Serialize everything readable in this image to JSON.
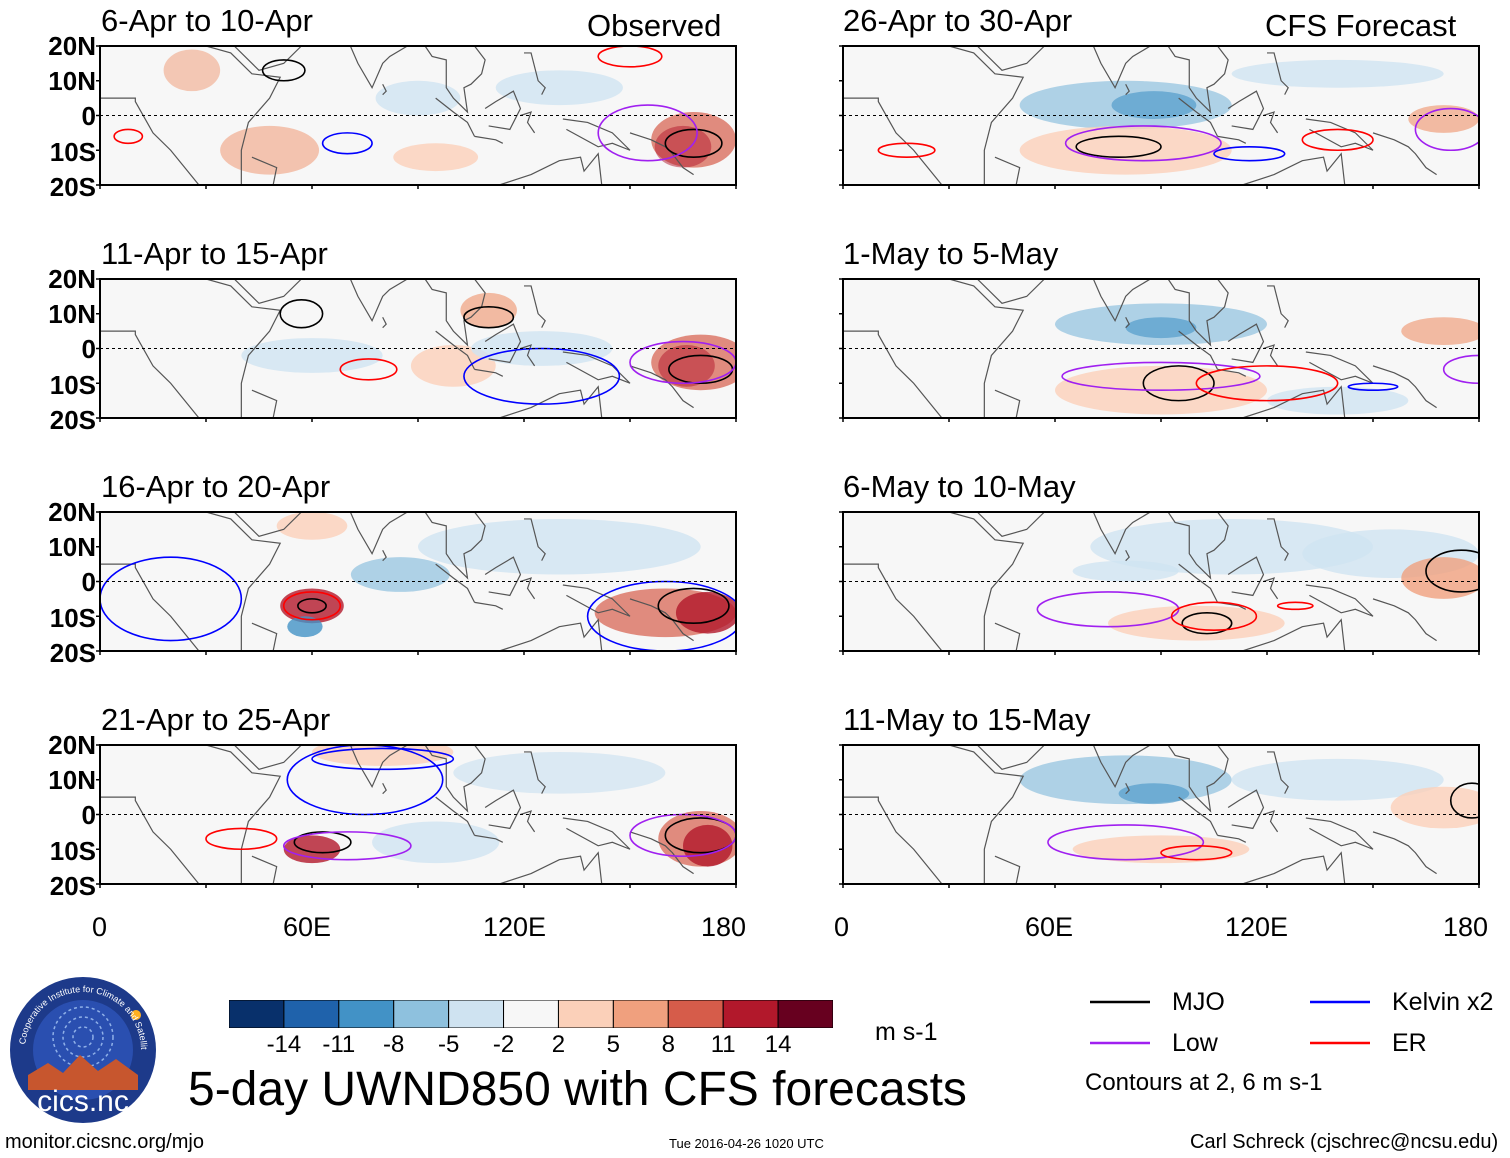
{
  "chart_data": {
    "type": "heatmap",
    "title": "5-day UWND850 with CFS forecasts",
    "variable": "850-hPa zonal wind anomaly",
    "units": "m s-1",
    "x_axis": {
      "range": [
        0,
        180
      ],
      "tick_values": [
        0,
        60,
        120,
        180
      ],
      "tick_labels": [
        "0",
        "60E",
        "120E",
        "180"
      ]
    },
    "y_axis": {
      "range": [
        -20,
        20
      ],
      "tick_values": [
        20,
        10,
        0,
        -10,
        -20
      ],
      "tick_labels": [
        "20N",
        "10N",
        "0",
        "10S",
        "20S"
      ]
    },
    "columns": [
      {
        "source": "Observed",
        "panels": [
          "6-Apr to 10-Apr",
          "11-Apr to 15-Apr",
          "16-Apr to 20-Apr",
          "21-Apr to 25-Apr"
        ]
      },
      {
        "source": "CFS Forecast",
        "panels": [
          "26-Apr to 30-Apr",
          "1-May to 5-May",
          "6-May to 10-May",
          "11-May to 15-May"
        ]
      }
    ],
    "colorbar": {
      "levels": [
        "-14",
        "-11",
        "-8",
        "-5",
        "-2",
        "2",
        "5",
        "8",
        "11",
        "14"
      ],
      "colors": [
        "#08306b",
        "#1f62ab",
        "#4292c6",
        "#8ec1de",
        "#cfe3f1",
        "#f7f7f7",
        "#fbd0b9",
        "#f0a07e",
        "#d65c4a",
        "#b2182b",
        "#67001f"
      ],
      "units": "m s-1"
    },
    "contours": {
      "items": [
        {
          "name": "MJO",
          "color": "#000000"
        },
        {
          "name": "Kelvin x2",
          "color": "#0000ff"
        },
        {
          "name": "Low",
          "color": "#a020f0"
        },
        {
          "name": "ER",
          "color": "#ff0000"
        }
      ],
      "note": "Contours at 2, 6 m s-1"
    }
  },
  "footer": {
    "url": "monitor.cicsnc.org/mjo",
    "timestamp": "Tue 2016-04-26 1020 UTC",
    "author": "Carl Schreck (cjschrec@ncsu.edu)"
  },
  "logo": {
    "name": "cics.nc",
    "ring_text": "Cooperative Institute for Climate and Satellites"
  }
}
